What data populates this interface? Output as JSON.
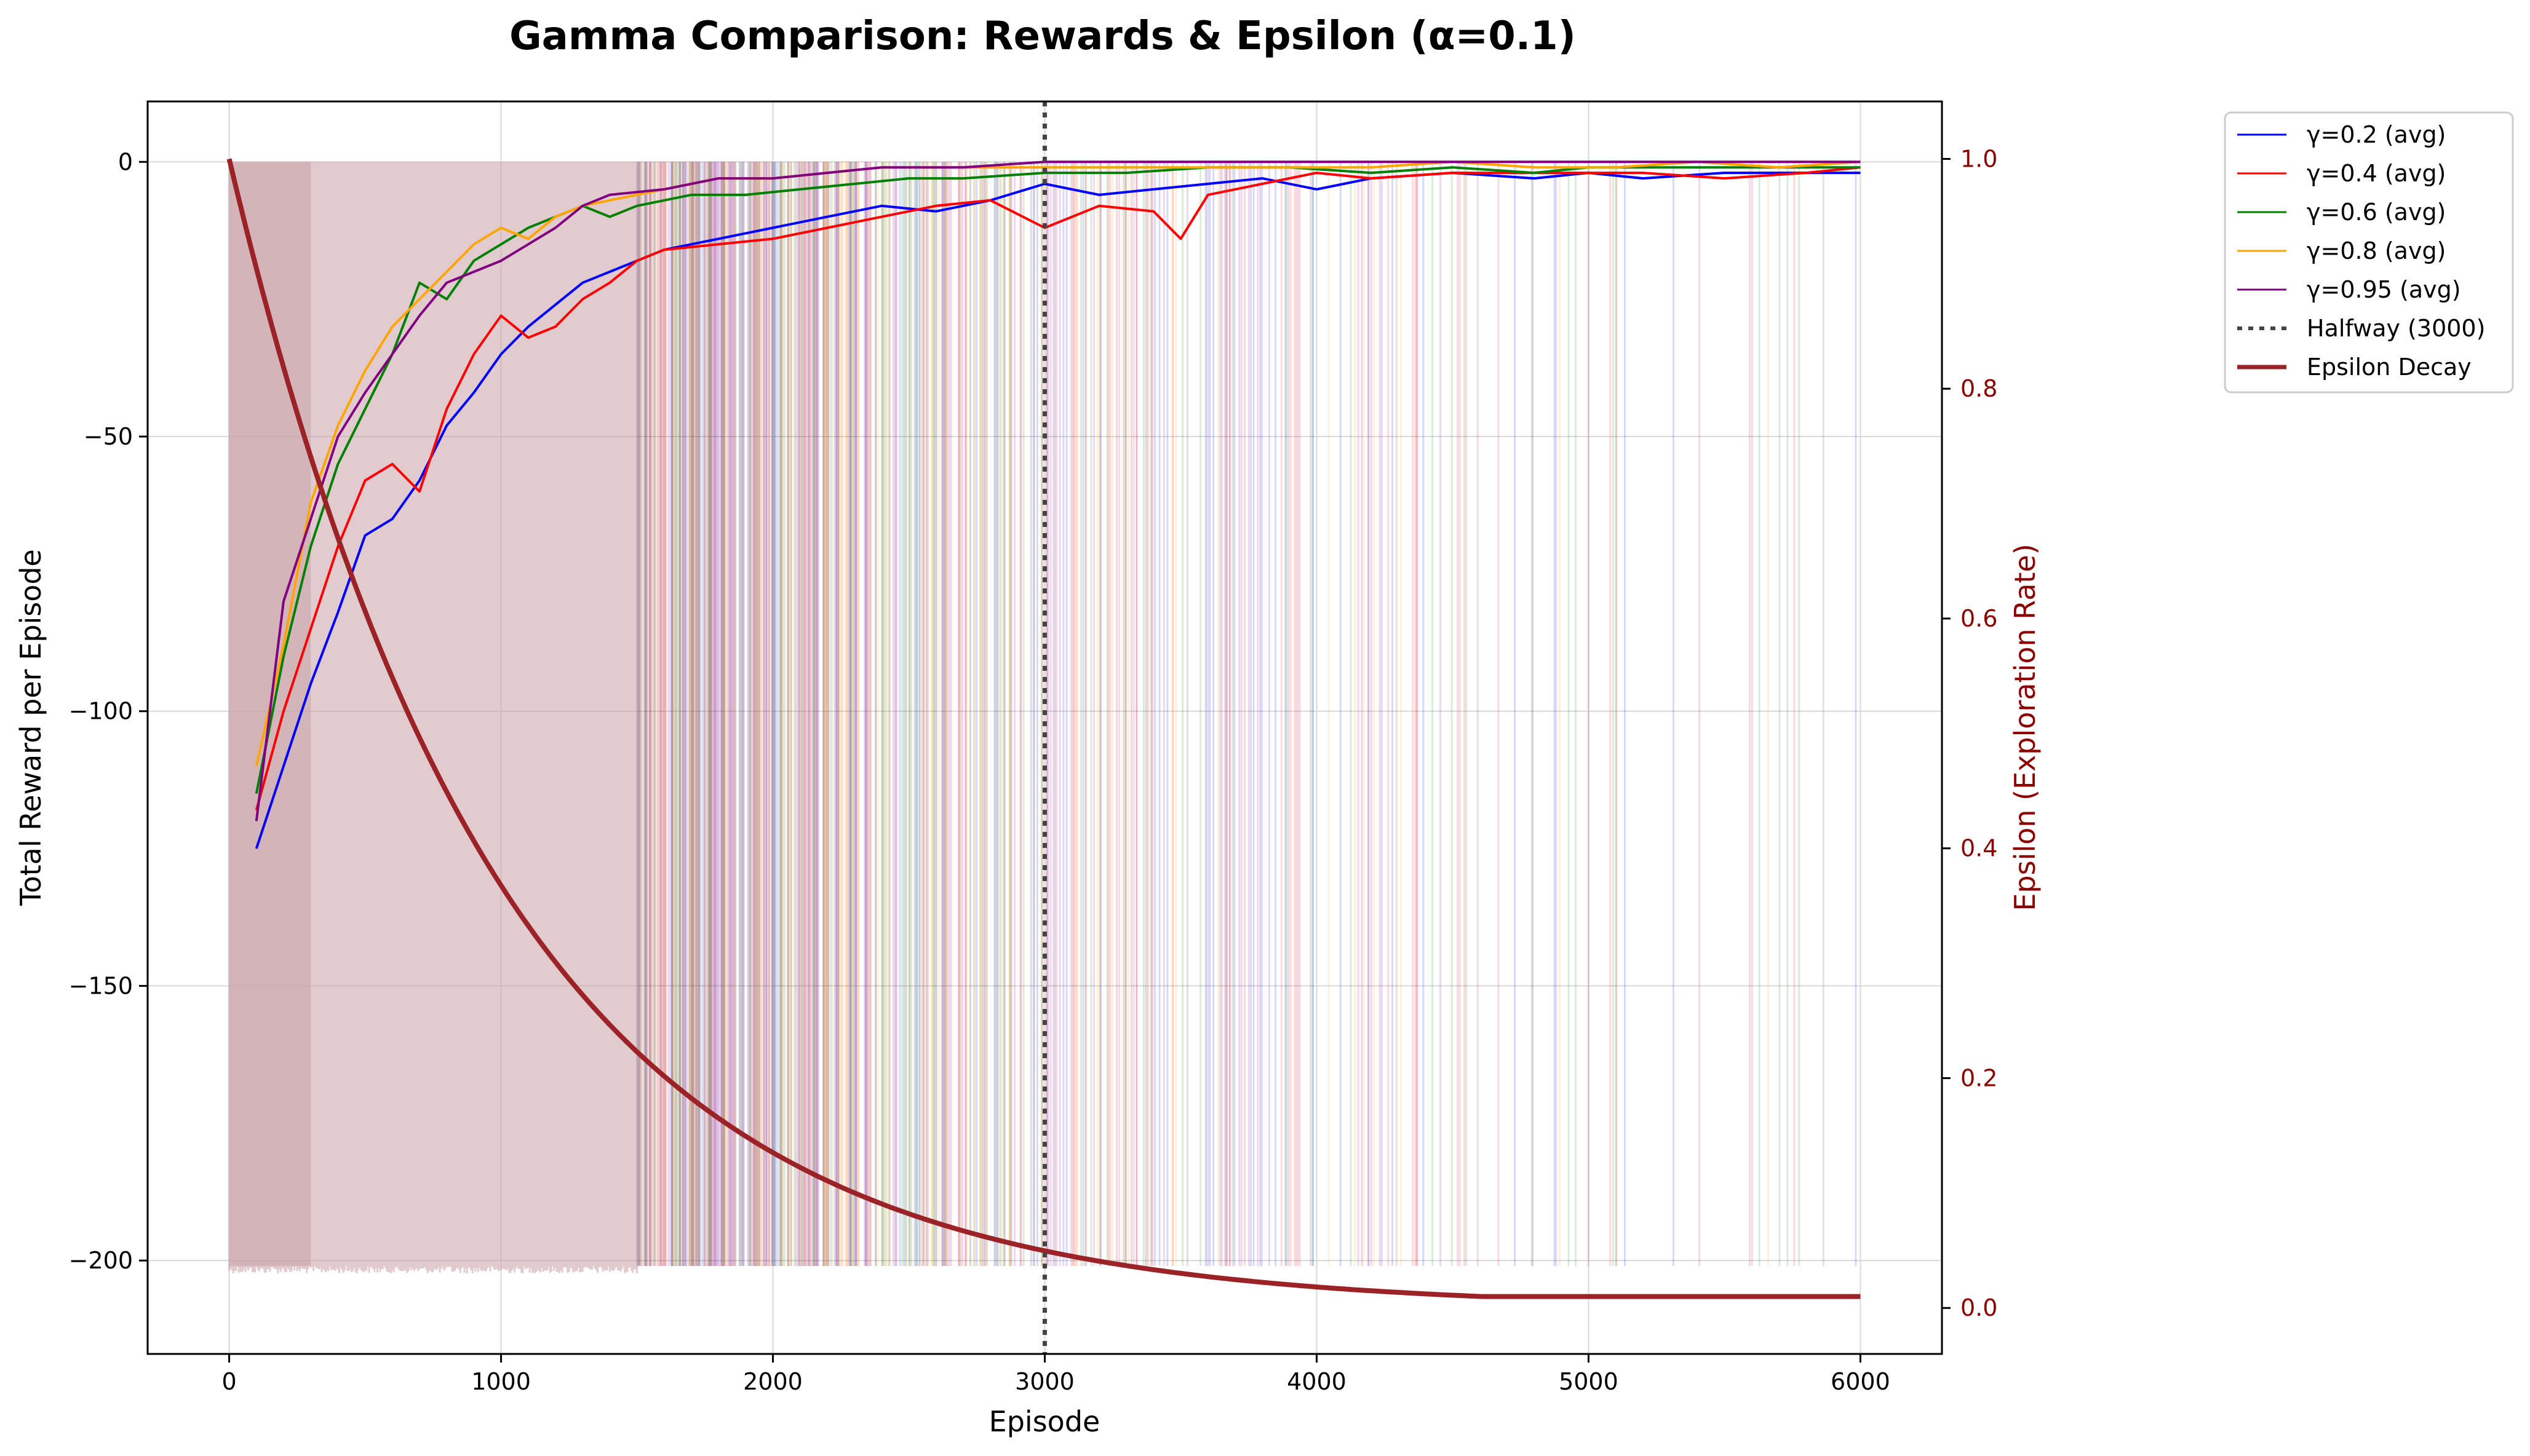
{
  "chart_data": {
    "type": "line",
    "title": "Gamma Comparison: Rewards & Epsilon (α=0.1)",
    "xlabel": "Episode",
    "ylabel": "Total Reward per Episode",
    "y2label": "Epsilon (Exploration Rate)",
    "xlim": [
      -300,
      6300
    ],
    "ylim": [
      -217,
      11
    ],
    "y2lim": [
      -0.04,
      1.05
    ],
    "xticks": [
      0,
      1000,
      2000,
      3000,
      4000,
      5000,
      6000
    ],
    "yticks": [
      0,
      -50,
      -100,
      -150,
      -200
    ],
    "y2ticks": [
      1.0,
      0.8,
      0.6,
      0.4,
      0.2,
      0.0
    ],
    "xtick_labels": [
      "0",
      "1000",
      "2000",
      "3000",
      "4000",
      "5000",
      "6000"
    ],
    "ytick_labels": [
      "0",
      "−50",
      "−100",
      "−150",
      "−200"
    ],
    "y2tick_labels": [
      "1.0",
      "0.8",
      "0.6",
      "0.4",
      "0.2",
      "0.0"
    ],
    "grid": true,
    "legend_position": "outside-top-right",
    "series": [
      {
        "name": "γ=0.2 (avg)",
        "color": "#0000ff",
        "x": [
          100,
          200,
          300,
          400,
          500,
          600,
          700,
          800,
          900,
          1000,
          1100,
          1200,
          1300,
          1400,
          1500,
          1600,
          1800,
          2000,
          2200,
          2400,
          2600,
          2800,
          3000,
          3200,
          3400,
          3600,
          3800,
          4000,
          4200,
          4500,
          4800,
          5000,
          5200,
          5500,
          5800,
          6000
        ],
        "y": [
          -125,
          -110,
          -95,
          -82,
          -68,
          -65,
          -58,
          -48,
          -42,
          -35,
          -30,
          -26,
          -22,
          -20,
          -18,
          -16,
          -14,
          -12,
          -10,
          -8,
          -9,
          -7,
          -4,
          -6,
          -5,
          -4,
          -3,
          -5,
          -3,
          -2,
          -3,
          -2,
          -3,
          -2,
          -2,
          -2
        ]
      },
      {
        "name": "γ=0.4 (avg)",
        "color": "#ff0000",
        "x": [
          100,
          200,
          300,
          400,
          500,
          600,
          700,
          800,
          900,
          1000,
          1100,
          1200,
          1300,
          1400,
          1500,
          1600,
          1800,
          2000,
          2200,
          2400,
          2600,
          2800,
          3000,
          3200,
          3400,
          3500,
          3600,
          3800,
          4000,
          4200,
          4500,
          4800,
          5000,
          5200,
          5500,
          5800,
          6000
        ],
        "y": [
          -118,
          -100,
          -85,
          -70,
          -58,
          -55,
          -60,
          -45,
          -35,
          -28,
          -32,
          -30,
          -25,
          -22,
          -18,
          -16,
          -15,
          -14,
          -12,
          -10,
          -8,
          -7,
          -12,
          -8,
          -9,
          -14,
          -6,
          -4,
          -2,
          -3,
          -2,
          -2,
          -2,
          -2,
          -3,
          -2,
          -1
        ]
      },
      {
        "name": "γ=0.6 (avg)",
        "color": "#008000",
        "x": [
          100,
          200,
          300,
          400,
          500,
          600,
          700,
          800,
          900,
          1000,
          1100,
          1200,
          1300,
          1400,
          1500,
          1700,
          1900,
          2100,
          2300,
          2500,
          2700,
          3000,
          3300,
          3600,
          3900,
          4200,
          4500,
          4800,
          5000,
          5300,
          5600,
          6000
        ],
        "y": [
          -115,
          -90,
          -70,
          -55,
          -45,
          -35,
          -22,
          -25,
          -18,
          -15,
          -12,
          -10,
          -8,
          -10,
          -8,
          -6,
          -6,
          -5,
          -4,
          -3,
          -3,
          -2,
          -2,
          -1,
          -1,
          -2,
          -1,
          -2,
          -1,
          -1,
          -1,
          -1
        ]
      },
      {
        "name": "γ=0.8 (avg)",
        "color": "#ffa500",
        "x": [
          100,
          200,
          300,
          400,
          500,
          600,
          700,
          800,
          900,
          1000,
          1100,
          1200,
          1300,
          1400,
          1600,
          1800,
          2000,
          2200,
          2400,
          2700,
          3000,
          3300,
          3600,
          3900,
          4200,
          4500,
          4800,
          5100,
          5400,
          5700,
          6000
        ],
        "y": [
          -110,
          -88,
          -62,
          -48,
          -38,
          -30,
          -25,
          -20,
          -15,
          -12,
          -14,
          -10,
          -8,
          -7,
          -5,
          -3,
          -3,
          -2,
          -1,
          -1,
          -1,
          -1,
          -1,
          -1,
          -1,
          0,
          -1,
          -1,
          0,
          -1,
          0
        ]
      },
      {
        "name": "γ=0.95 (avg)",
        "color": "#800080",
        "x": [
          100,
          200,
          300,
          400,
          500,
          600,
          700,
          800,
          900,
          1000,
          1100,
          1200,
          1300,
          1400,
          1600,
          1800,
          2000,
          2200,
          2400,
          2700,
          3000,
          3300,
          3600,
          3900,
          4200,
          4500,
          4800,
          5100,
          5400,
          5700,
          6000
        ],
        "y": [
          -120,
          -80,
          -65,
          -50,
          -42,
          -35,
          -28,
          -22,
          -20,
          -18,
          -15,
          -12,
          -8,
          -6,
          -5,
          -3,
          -3,
          -2,
          -1,
          -1,
          0,
          0,
          0,
          0,
          0,
          0,
          0,
          0,
          0,
          0,
          0
        ]
      }
    ],
    "halfway": {
      "name": "Halfway (3000)",
      "x": 3000,
      "color": "#444444"
    },
    "epsilon": {
      "name": "Epsilon Decay",
      "color": "#9b2226",
      "start": 1.0,
      "decay": 0.999,
      "min": 0.01,
      "x_end": 6000
    }
  }
}
